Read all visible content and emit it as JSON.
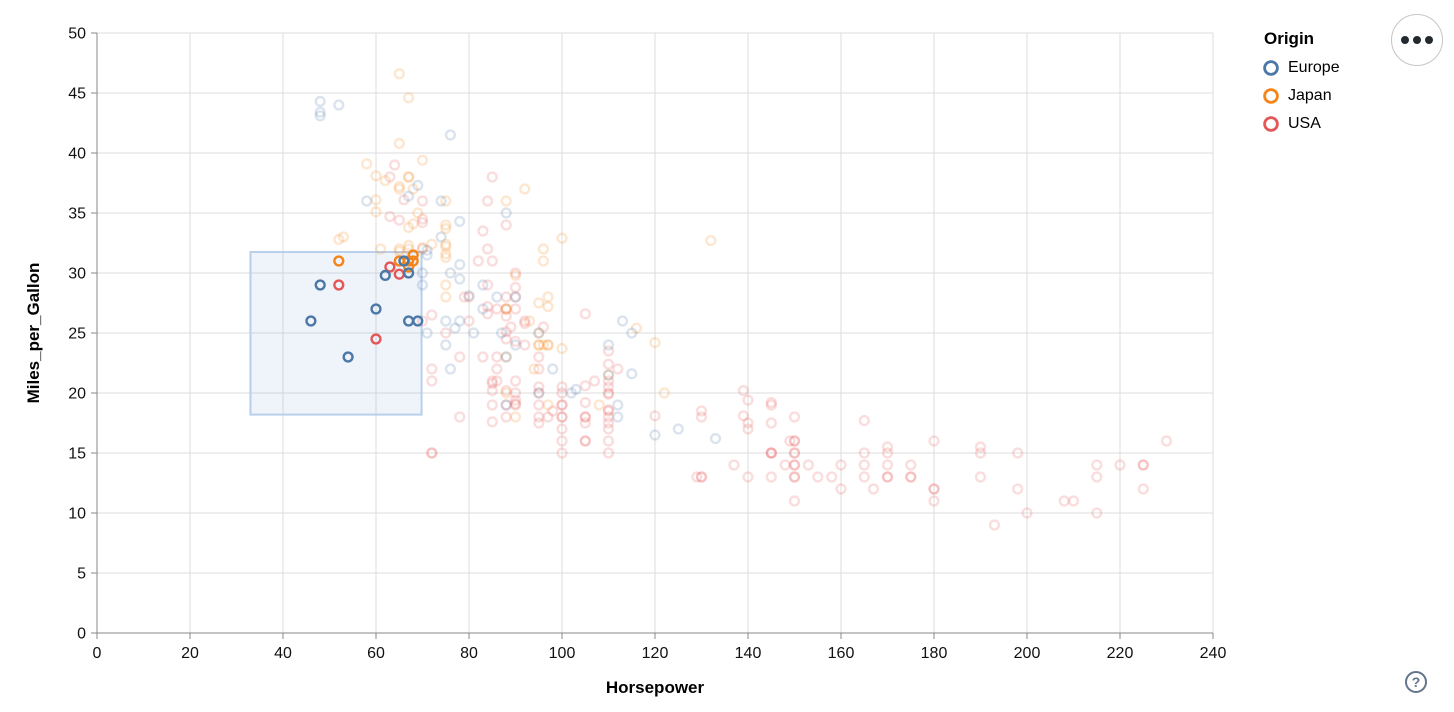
{
  "legend": {
    "title": "Origin",
    "entries": [
      {
        "label": "Europe",
        "color": "#4c78a8"
      },
      {
        "label": "Japan",
        "color": "#f58518"
      },
      {
        "label": "USA",
        "color": "#e45756"
      }
    ]
  },
  "help": {
    "glyph": "?"
  },
  "chart_data": {
    "type": "scatter",
    "title": "",
    "xlabel": "Horsepower",
    "ylabel": "Miles_per_Gallon",
    "xlim": [
      0,
      240
    ],
    "ylim": [
      0,
      50
    ],
    "x_ticks": [
      0,
      20,
      40,
      60,
      80,
      100,
      120,
      140,
      160,
      180,
      200,
      220,
      240
    ],
    "y_ticks": [
      0,
      5,
      10,
      15,
      20,
      25,
      30,
      35,
      40,
      45,
      50
    ],
    "grid": true,
    "legend_position": "top-right",
    "series_field": "Origin",
    "origin_codes": {
      "E": "Europe",
      "J": "Japan",
      "U": "USA"
    },
    "mark": "open-circle",
    "brush_selection": {
      "horsepower": [
        33,
        69.8
      ],
      "mpg": [
        18.2,
        31.75
      ]
    },
    "selected_opacity": 1,
    "unselected_opacity": 0.2,
    "grid_color": "#dddddd",
    "axis_color": "#888888",
    "brush_fill": "rgba(120,160,215,0.12)",
    "brush_stroke": "#b9cfec",
    "points": [
      [
        130,
        18,
        "U"
      ],
      [
        165,
        15,
        "U"
      ],
      [
        150,
        18,
        "U"
      ],
      [
        150,
        16,
        "U"
      ],
      [
        140,
        17,
        "U"
      ],
      [
        198,
        15,
        "U"
      ],
      [
        220,
        14,
        "U"
      ],
      [
        215,
        14,
        "U"
      ],
      [
        225,
        14,
        "U"
      ],
      [
        190,
        15,
        "U"
      ],
      [
        170,
        15,
        "U"
      ],
      [
        160,
        14,
        "U"
      ],
      [
        150,
        15,
        "U"
      ],
      [
        225,
        14,
        "U"
      ],
      [
        95,
        22,
        "U"
      ],
      [
        97,
        18,
        "U"
      ],
      [
        85,
        21,
        "U"
      ],
      [
        90,
        21,
        "U"
      ],
      [
        215,
        10,
        "U"
      ],
      [
        200,
        10,
        "U"
      ],
      [
        210,
        11,
        "U"
      ],
      [
        193,
        9,
        "U"
      ],
      [
        90,
        28,
        "U"
      ],
      [
        105,
        16,
        "U"
      ],
      [
        100,
        17,
        "U"
      ],
      [
        88,
        19,
        "U"
      ],
      [
        100,
        18,
        "U"
      ],
      [
        165,
        14,
        "U"
      ],
      [
        175,
        14,
        "U"
      ],
      [
        153,
        14,
        "U"
      ],
      [
        150,
        14,
        "U"
      ],
      [
        180,
        12,
        "U"
      ],
      [
        170,
        13,
        "U"
      ],
      [
        175,
        13,
        "U"
      ],
      [
        110,
        18,
        "U"
      ],
      [
        72,
        22,
        "U"
      ],
      [
        100,
        19,
        "U"
      ],
      [
        88,
        18,
        "U"
      ],
      [
        86,
        23,
        "U"
      ],
      [
        90,
        20,
        "U"
      ],
      [
        86,
        21,
        "U"
      ],
      [
        165,
        13,
        "U"
      ],
      [
        150,
        15,
        "U"
      ],
      [
        208,
        11,
        "U"
      ],
      [
        155,
        13,
        "U"
      ],
      [
        160,
        12,
        "U"
      ],
      [
        190,
        13,
        "U"
      ],
      [
        130,
        13,
        "U"
      ],
      [
        140,
        13,
        "U"
      ],
      [
        150,
        14,
        "U"
      ],
      [
        86,
        22,
        "U"
      ],
      [
        80,
        28,
        "U"
      ],
      [
        175,
        13,
        "U"
      ],
      [
        145,
        15,
        "U"
      ],
      [
        137,
        14,
        "U"
      ],
      [
        198,
        12,
        "U"
      ],
      [
        150,
        13,
        "U"
      ],
      [
        158,
        13,
        "U"
      ],
      [
        215,
        13,
        "U"
      ],
      [
        225,
        12,
        "U"
      ],
      [
        105,
        18,
        "U"
      ],
      [
        100,
        18,
        "U"
      ],
      [
        95,
        23,
        "U"
      ],
      [
        150,
        11,
        "U"
      ],
      [
        167,
        12,
        "U"
      ],
      [
        170,
        13,
        "U"
      ],
      [
        180,
        12,
        "U"
      ],
      [
        72,
        21,
        "U"
      ],
      [
        85,
        19,
        "U"
      ],
      [
        107,
        21,
        "U"
      ],
      [
        145,
        15,
        "U"
      ],
      [
        230,
        16,
        "U"
      ],
      [
        180,
        11,
        "U"
      ],
      [
        95,
        20,
        "U"
      ],
      [
        100,
        15,
        "U"
      ],
      [
        80,
        26,
        "U"
      ],
      [
        75,
        25,
        "U"
      ],
      [
        100,
        16,
        "U"
      ],
      [
        110,
        16,
        "U"
      ],
      [
        72,
        15,
        "U"
      ],
      [
        72,
        15,
        "U"
      ],
      [
        170,
        14,
        "U"
      ],
      [
        145,
        15,
        "U"
      ],
      [
        150,
        16,
        "U"
      ],
      [
        148,
        14,
        "U"
      ],
      [
        110,
        17,
        "U"
      ],
      [
        105,
        16,
        "U"
      ],
      [
        110,
        15,
        "U"
      ],
      [
        95,
        18,
        "U"
      ],
      [
        110,
        21,
        "U"
      ],
      [
        110,
        20,
        "U"
      ],
      [
        129,
        13,
        "U"
      ],
      [
        83,
        23,
        "U"
      ],
      [
        100,
        20,
        "U"
      ],
      [
        78,
        23,
        "U"
      ],
      [
        90,
        19,
        "U"
      ],
      [
        95,
        19,
        "U"
      ],
      [
        105,
        18,
        "U"
      ],
      [
        78,
        18,
        "U"
      ],
      [
        110,
        18.5,
        "U"
      ],
      [
        95,
        17.5,
        "U"
      ],
      [
        72,
        26.5,
        "U"
      ],
      [
        150,
        13,
        "U"
      ],
      [
        145,
        13,
        "U"
      ],
      [
        130,
        13,
        "U"
      ],
      [
        90,
        30,
        "U"
      ],
      [
        96,
        25.5,
        "U"
      ],
      [
        145,
        17.5,
        "U"
      ],
      [
        110,
        20.5,
        "U"
      ],
      [
        145,
        19,
        "U"
      ],
      [
        130,
        18.5,
        "U"
      ],
      [
        110,
        17.5,
        "U"
      ],
      [
        105,
        17.5,
        "U"
      ],
      [
        100,
        19,
        "U"
      ],
      [
        98,
        18.5,
        "U"
      ],
      [
        180,
        16,
        "U"
      ],
      [
        170,
        15.5,
        "U"
      ],
      [
        190,
        15.5,
        "U"
      ],
      [
        149,
        16,
        "U"
      ],
      [
        88,
        24.5,
        "U"
      ],
      [
        89,
        25.5,
        "U"
      ],
      [
        83,
        33.5,
        "U"
      ],
      [
        110,
        19.9,
        "U"
      ],
      [
        140,
        19.4,
        "U"
      ],
      [
        139,
        20.2,
        "U"
      ],
      [
        105,
        19.2,
        "U"
      ],
      [
        95,
        20.5,
        "U"
      ],
      [
        85,
        20.2,
        "U"
      ],
      [
        88,
        25.1,
        "U"
      ],
      [
        100,
        20.5,
        "U"
      ],
      [
        90,
        19.4,
        "U"
      ],
      [
        105,
        20.6,
        "U"
      ],
      [
        85,
        20.8,
        "U"
      ],
      [
        110,
        18.6,
        "U"
      ],
      [
        120,
        18.1,
        "U"
      ],
      [
        145,
        19.2,
        "U"
      ],
      [
        165,
        17.7,
        "U"
      ],
      [
        139,
        18.1,
        "U"
      ],
      [
        140,
        17.5,
        "U"
      ],
      [
        70,
        34.2,
        "U"
      ],
      [
        70,
        34.5,
        "U"
      ],
      [
        70,
        32.1,
        "U"
      ],
      [
        90,
        28.8,
        "U"
      ],
      [
        88,
        26.4,
        "U"
      ],
      [
        90,
        24.3,
        "U"
      ],
      [
        90,
        19.1,
        "U"
      ],
      [
        84,
        27.2,
        "U"
      ],
      [
        84,
        26.6,
        "U"
      ],
      [
        92,
        25.8,
        "U"
      ],
      [
        110,
        23.5,
        "U"
      ],
      [
        64,
        39,
        "U"
      ],
      [
        63,
        34.7,
        "U"
      ],
      [
        65,
        34.4,
        "U"
      ],
      [
        88,
        28,
        "U"
      ],
      [
        88,
        27,
        "U"
      ],
      [
        88,
        34,
        "U"
      ],
      [
        85,
        31,
        "U"
      ],
      [
        84,
        29,
        "U"
      ],
      [
        90,
        27,
        "U"
      ],
      [
        92,
        24,
        "U"
      ],
      [
        110,
        22.4,
        "U"
      ],
      [
        105,
        26.6,
        "U"
      ],
      [
        88,
        20.2,
        "U"
      ],
      [
        85,
        17.6,
        "U"
      ],
      [
        85,
        38,
        "U"
      ],
      [
        92,
        26,
        "U"
      ],
      [
        112,
        22,
        "U"
      ],
      [
        84,
        36,
        "U"
      ],
      [
        86,
        27,
        "U"
      ],
      [
        84,
        32,
        "U"
      ],
      [
        79,
        28,
        "U"
      ],
      [
        82,
        31,
        "U"
      ],
      [
        63,
        38,
        "U"
      ],
      [
        70,
        36,
        "U"
      ],
      [
        66,
        36.1,
        "U"
      ],
      [
        70,
        26,
        "U"
      ],
      [
        52,
        29,
        "U"
      ],
      [
        60,
        24.5,
        "U"
      ],
      [
        63,
        30.5,
        "U"
      ],
      [
        65,
        29.9,
        "U"
      ],
      [
        95,
        24,
        "J"
      ],
      [
        88,
        27,
        "J"
      ],
      [
        95,
        25,
        "J"
      ],
      [
        69,
        35,
        "J"
      ],
      [
        95,
        24,
        "J"
      ],
      [
        97,
        19,
        "J"
      ],
      [
        97,
        28,
        "J"
      ],
      [
        88,
        23,
        "J"
      ],
      [
        88,
        27,
        "J"
      ],
      [
        88,
        20,
        "J"
      ],
      [
        94,
        22,
        "J"
      ],
      [
        90,
        18,
        "J"
      ],
      [
        122,
        20,
        "J"
      ],
      [
        65,
        32,
        "J"
      ],
      [
        96,
        31,
        "J"
      ],
      [
        61,
        32,
        "J"
      ],
      [
        97,
        24,
        "J"
      ],
      [
        93,
        26,
        "J"
      ],
      [
        75,
        29,
        "J"
      ],
      [
        96,
        24,
        "J"
      ],
      [
        97,
        24,
        "J"
      ],
      [
        53,
        33,
        "J"
      ],
      [
        108,
        19,
        "J"
      ],
      [
        70,
        32,
        "J"
      ],
      [
        75,
        28,
        "J"
      ],
      [
        52,
        32.8,
        "J"
      ],
      [
        70,
        39.4,
        "J"
      ],
      [
        60,
        36.1,
        "J"
      ],
      [
        97,
        27.2,
        "J"
      ],
      [
        95,
        27.5,
        "J"
      ],
      [
        65,
        31.8,
        "J"
      ],
      [
        60,
        38.1,
        "J"
      ],
      [
        65,
        37.2,
        "J"
      ],
      [
        90,
        29.8,
        "J"
      ],
      [
        75,
        31.3,
        "J"
      ],
      [
        92,
        37,
        "J"
      ],
      [
        75,
        32.2,
        "J"
      ],
      [
        65,
        46.6,
        "J"
      ],
      [
        65,
        40.8,
        "J"
      ],
      [
        67,
        44.6,
        "J"
      ],
      [
        67,
        33.8,
        "J"
      ],
      [
        132,
        32.7,
        "J"
      ],
      [
        100,
        23.7,
        "J"
      ],
      [
        72,
        32.4,
        "J"
      ],
      [
        58,
        39.1,
        "J"
      ],
      [
        60,
        35.1,
        "J"
      ],
      [
        67,
        32.3,
        "J"
      ],
      [
        65,
        37,
        "J"
      ],
      [
        62,
        37.7,
        "J"
      ],
      [
        68,
        34.1,
        "J"
      ],
      [
        75,
        33.7,
        "J"
      ],
      [
        75,
        32.4,
        "J"
      ],
      [
        100,
        32.9,
        "J"
      ],
      [
        75,
        31.6,
        "J"
      ],
      [
        116,
        25.4,
        "J"
      ],
      [
        120,
        24.2,
        "J"
      ],
      [
        96,
        32,
        "J"
      ],
      [
        88,
        36,
        "J"
      ],
      [
        75,
        36,
        "J"
      ],
      [
        75,
        34,
        "J"
      ],
      [
        67,
        38,
        "J"
      ],
      [
        67,
        32,
        "J"
      ],
      [
        67,
        38,
        "J"
      ],
      [
        68,
        37,
        "J"
      ],
      [
        110,
        21.5,
        "J"
      ],
      [
        52,
        31,
        "J"
      ],
      [
        65,
        31,
        "J"
      ],
      [
        67,
        31,
        "J"
      ],
      [
        68,
        31,
        "J"
      ],
      [
        68,
        31.5,
        "J"
      ],
      [
        67,
        30.5,
        "J"
      ],
      [
        70,
        30,
        "E"
      ],
      [
        70,
        29,
        "E"
      ],
      [
        71,
        25,
        "E"
      ],
      [
        71,
        31.9,
        "E"
      ],
      [
        71,
        31.5,
        "E"
      ],
      [
        75,
        24,
        "E"
      ],
      [
        75,
        26,
        "E"
      ],
      [
        76,
        22,
        "E"
      ],
      [
        76,
        30,
        "E"
      ],
      [
        77,
        25.4,
        "E"
      ],
      [
        78,
        26,
        "E"
      ],
      [
        78,
        29.5,
        "E"
      ],
      [
        78,
        30.7,
        "E"
      ],
      [
        78,
        34.3,
        "E"
      ],
      [
        80,
        28.1,
        "E"
      ],
      [
        81,
        25,
        "E"
      ],
      [
        83,
        27,
        "E"
      ],
      [
        83,
        29,
        "E"
      ],
      [
        86,
        28,
        "E"
      ],
      [
        87,
        25,
        "E"
      ],
      [
        88,
        19,
        "E"
      ],
      [
        88,
        23,
        "E"
      ],
      [
        88,
        35,
        "E"
      ],
      [
        90,
        24,
        "E"
      ],
      [
        90,
        28,
        "E"
      ],
      [
        95,
        20,
        "E"
      ],
      [
        95,
        25,
        "E"
      ],
      [
        98,
        22,
        "E"
      ],
      [
        102,
        20,
        "E"
      ],
      [
        103,
        20.3,
        "E"
      ],
      [
        110,
        21.5,
        "E"
      ],
      [
        110,
        24,
        "E"
      ],
      [
        112,
        18,
        "E"
      ],
      [
        112,
        19,
        "E"
      ],
      [
        113,
        26,
        "E"
      ],
      [
        115,
        21.6,
        "E"
      ],
      [
        115,
        25,
        "E"
      ],
      [
        120,
        16.5,
        "E"
      ],
      [
        125,
        17,
        "E"
      ],
      [
        133,
        16.2,
        "E"
      ],
      [
        58,
        36,
        "E"
      ],
      [
        67,
        36.4,
        "E"
      ],
      [
        69,
        37.3,
        "E"
      ],
      [
        48,
        43.1,
        "E"
      ],
      [
        48,
        43.4,
        "E"
      ],
      [
        48,
        44.3,
        "E"
      ],
      [
        52,
        44,
        "E"
      ],
      [
        76,
        41.5,
        "E"
      ],
      [
        74,
        33,
        "E"
      ],
      [
        74,
        36,
        "E"
      ],
      [
        46,
        26,
        "E"
      ],
      [
        48,
        29,
        "E"
      ],
      [
        54,
        23,
        "E"
      ],
      [
        60,
        27,
        "E"
      ],
      [
        62,
        29.8,
        "E"
      ],
      [
        66,
        31,
        "E"
      ],
      [
        67,
        26,
        "E"
      ],
      [
        67,
        30,
        "E"
      ],
      [
        69,
        26,
        "E"
      ]
    ]
  }
}
